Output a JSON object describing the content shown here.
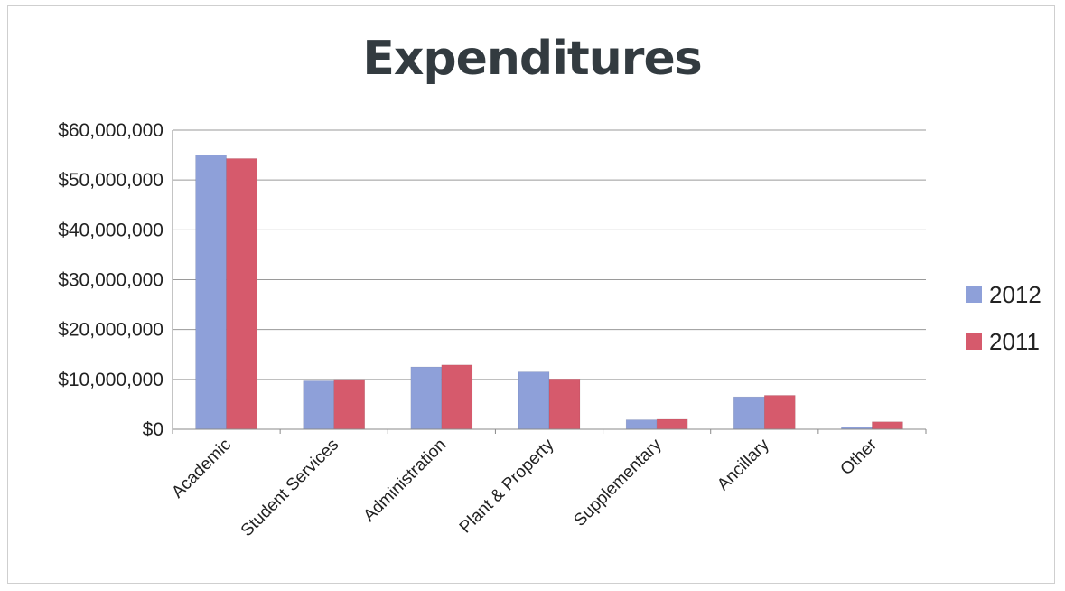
{
  "chart_data": {
    "type": "bar",
    "title": "Expenditures",
    "categories": [
      "Academic",
      "Student Services",
      "Administration",
      "Plant & Property",
      "Supplementary",
      "Ancillary",
      "Other"
    ],
    "series": [
      {
        "name": "2012",
        "color": "#8ea0d9",
        "values": [
          55000000,
          9700000,
          12500000,
          11500000,
          1900000,
          6500000,
          400000
        ]
      },
      {
        "name": "2011",
        "color": "#d65a6c",
        "values": [
          54300000,
          10000000,
          12900000,
          10100000,
          2000000,
          6800000,
          1500000
        ]
      }
    ],
    "ylim": [
      0,
      60000000
    ],
    "yticks": [
      0,
      10000000,
      20000000,
      30000000,
      40000000,
      50000000,
      60000000
    ],
    "ytick_labels": [
      "$0",
      "$10,000,000",
      "$20,000,000",
      "$30,000,000",
      "$40,000,000",
      "$50,000,000",
      "$60,000,000"
    ],
    "xlabel": "",
    "ylabel": "",
    "grid": true,
    "legend": "right"
  }
}
